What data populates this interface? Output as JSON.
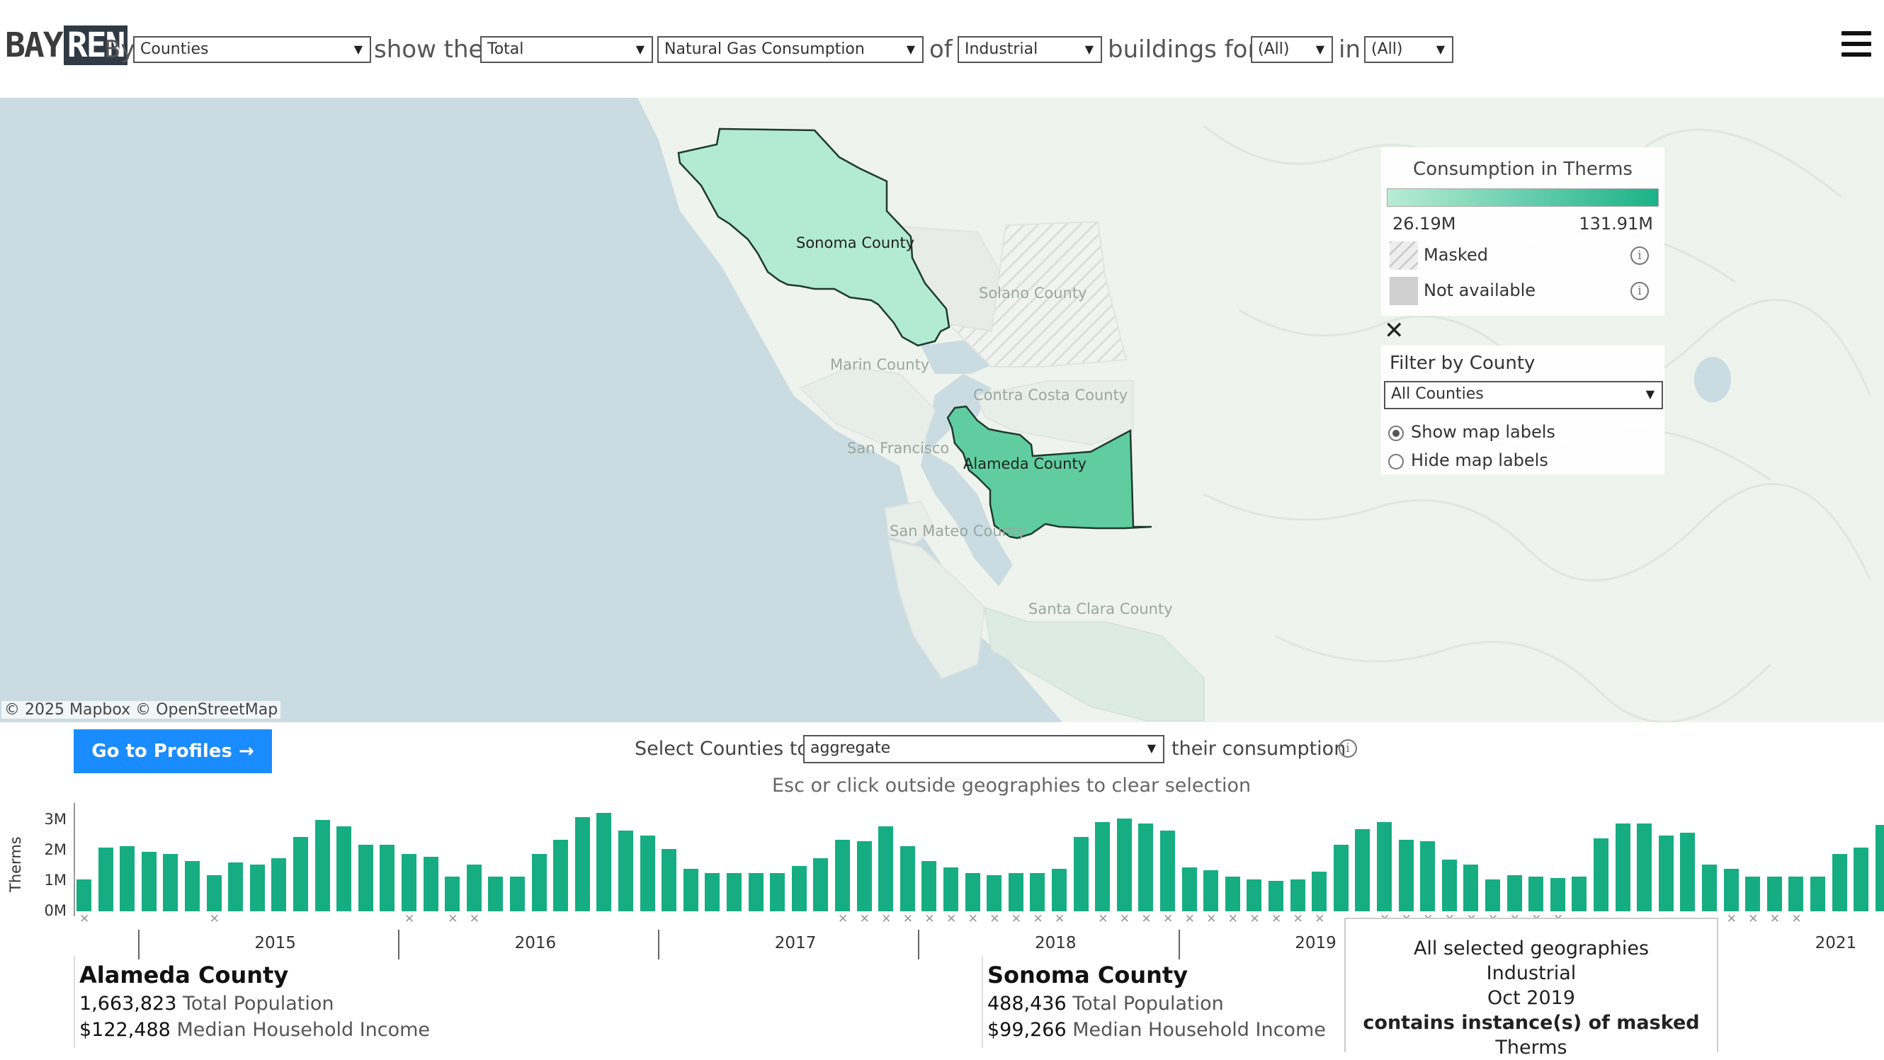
{
  "header": {
    "logo_left": "BAY",
    "logo_right": "REN",
    "by_label": "By",
    "by_value": "Counties",
    "show_label": "show the",
    "measure_value": "Total",
    "metric_value": "Natural Gas Consumption",
    "of_label": "of",
    "sector_value": "Industrial",
    "buildings_label": "buildings for",
    "filter1_value": "(All)",
    "in_label": "in",
    "filter2_value": "(All)"
  },
  "map": {
    "counties": [
      {
        "name": "Sonoma County",
        "state": "selected"
      },
      {
        "name": "Solano County",
        "state": "masked"
      },
      {
        "name": "Marin County",
        "state": "faded"
      },
      {
        "name": "Contra Costa County",
        "state": "faded"
      },
      {
        "name": "San Francisco",
        "state": "faded"
      },
      {
        "name": "Alameda County",
        "state": "selected"
      },
      {
        "name": "San Mateo County",
        "state": "faded"
      },
      {
        "name": "Santa Clara County",
        "state": "faded"
      }
    ],
    "attribution": "© 2025 Mapbox  © OpenStreetMap",
    "colors": {
      "low": "#b8ecd6",
      "high": "#1ab287",
      "water": "#cbdbe2",
      "land": "#eef3ed"
    }
  },
  "legend": {
    "title": "Consumption in Therms",
    "min": "26.19M",
    "max": "131.91M",
    "masked_label": "Masked",
    "na_label": "Not available",
    "filter_title": "Filter by County",
    "filter_value": "All Counties",
    "show_labels": "Show map labels",
    "hide_labels": "Hide map labels"
  },
  "controls": {
    "profiles_button": "Go to Profiles",
    "select_prefix": "Select Counties to",
    "aggregate_value": "aggregate",
    "select_suffix": "their consumption",
    "hint": "Esc or click outside geographies to clear selection"
  },
  "chart_data": {
    "type": "bar",
    "title": "",
    "xlabel": "",
    "ylabel": "Therms",
    "ylim": [
      0,
      3500000
    ],
    "yticks": [
      "0M",
      "1M",
      "2M",
      "3M"
    ],
    "year_labels": [
      "2015",
      "2016",
      "2017",
      "2018",
      "2019",
      "2021"
    ],
    "start": "2014-10",
    "values": [
      1050000,
      2100000,
      2150000,
      1950000,
      1900000,
      1650000,
      1200000,
      1600000,
      1550000,
      1750000,
      2450000,
      3000000,
      2800000,
      2200000,
      2200000,
      1900000,
      1800000,
      1150000,
      1550000,
      1150000,
      1150000,
      1900000,
      2350000,
      3100000,
      3250000,
      2650000,
      2500000,
      2050000,
      1400000,
      1250000,
      1250000,
      1250000,
      1250000,
      1500000,
      1750000,
      2350000,
      2300000,
      2800000,
      2150000,
      1650000,
      1450000,
      1250000,
      1200000,
      1250000,
      1250000,
      1400000,
      2450000,
      2950000,
      3050000,
      2900000,
      2650000,
      1450000,
      1350000,
      1150000,
      1050000,
      1000000,
      1050000,
      1300000,
      2200000,
      2700000,
      2950000,
      2350000,
      2300000,
      1700000,
      1550000,
      1050000,
      1200000,
      1150000,
      1100000,
      1150000,
      2400000,
      2900000,
      2900000,
      2500000,
      2600000,
      1550000,
      1400000,
      1150000,
      1150000,
      1150000,
      1150000,
      1900000,
      2100000,
      2850000
    ],
    "masked_months": [
      "2014-10",
      "2015-04",
      "2016-01",
      "2016-03",
      "2016-04",
      "2017-09",
      "2017-10",
      "2017-11",
      "2017-12",
      "2018-01",
      "2018-02",
      "2018-03",
      "2018-04",
      "2018-05",
      "2018-06",
      "2018-07",
      "2018-09",
      "2018-10",
      "2018-11",
      "2018-12",
      "2019-01",
      "2019-02",
      "2019-03",
      "2019-04",
      "2019-05",
      "2019-06",
      "2019-07",
      "2019-10",
      "2019-11",
      "2019-12",
      "2020-01",
      "2020-02",
      "2020-03",
      "2020-04",
      "2020-05",
      "2020-06",
      "2021-02",
      "2021-03",
      "2021-04",
      "2021-05"
    ]
  },
  "profiles": [
    {
      "name": "Alameda County",
      "population": "1,663,823",
      "population_label": "Total Population",
      "income": "$122,488",
      "income_label": "Median Household Income"
    },
    {
      "name": "Sonoma County",
      "population": "488,436",
      "population_label": "Total Population",
      "income": "$99,266",
      "income_label": "Median Household Income"
    }
  ],
  "tooltip": {
    "line1": "All selected geographies",
    "line2": "Industrial",
    "line3": "Oct 2019",
    "line4_bold": "contains instance(s) of masked",
    "line4_rest": "Therms"
  }
}
